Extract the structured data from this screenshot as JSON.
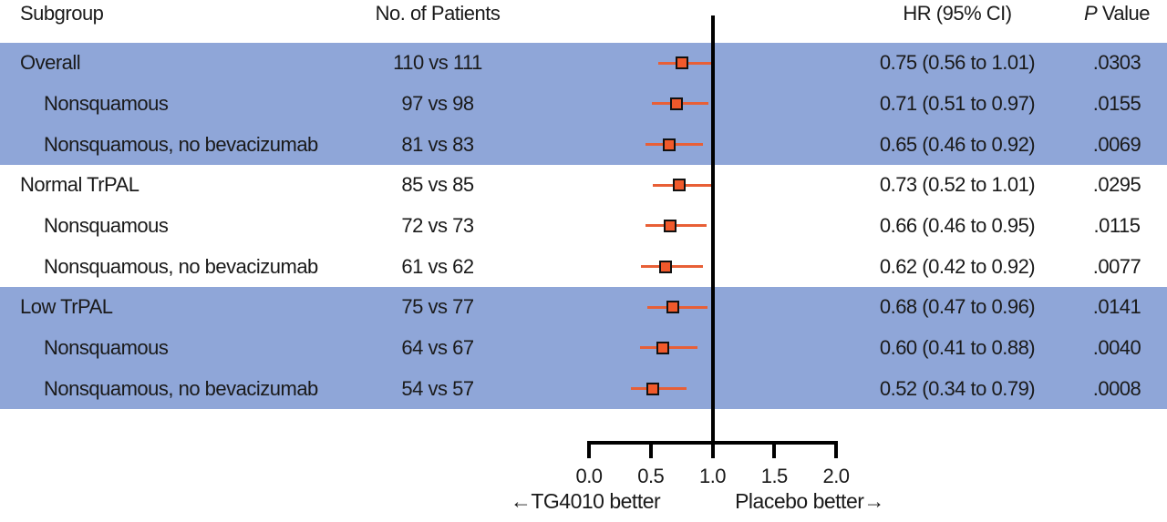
{
  "figure": {
    "header": {
      "subgroup": "Subgroup",
      "patients": "No. of Patients",
      "hr": "HR (95% CI)",
      "p_italic": "P",
      "p_rest": " Value"
    }
  },
  "colors": {
    "band_blue": "#8fa6d8",
    "marker_fill": "#f1592b",
    "marker_border": "#111111",
    "ci_line": "#e85f36",
    "axis_black": "#000000",
    "text": "#1a1a1a"
  },
  "chart_data": {
    "type": "forest",
    "title": "",
    "columns": [
      "Subgroup",
      "No. of Patients",
      "HR (95% CI)",
      "P Value"
    ],
    "x_axis": {
      "min": 0.0,
      "max": 2.0,
      "tick_values": [
        0.0,
        0.5,
        1.0,
        1.5,
        2.0
      ],
      "tick_labels": [
        "0.0",
        "0.5",
        "1.0",
        "1.5",
        "2.0"
      ],
      "reference_line": 1.0
    },
    "direction_labels": {
      "left": "←TG4010 better",
      "right": "Placebo better→"
    },
    "rows": [
      {
        "label": "Overall",
        "indent": false,
        "patients": "110 vs 111",
        "hr": 0.75,
        "ci_low": 0.56,
        "ci_high": 1.01,
        "hr_ci_text": "0.75 (0.56 to 1.01)",
        "p_value": ".0303",
        "band": "blue"
      },
      {
        "label": "Nonsquamous",
        "indent": true,
        "patients": "97 vs 98",
        "hr": 0.71,
        "ci_low": 0.51,
        "ci_high": 0.97,
        "hr_ci_text": "0.71 (0.51 to 0.97)",
        "p_value": ".0155",
        "band": "blue"
      },
      {
        "label": "Nonsquamous, no bevacizumab",
        "indent": true,
        "patients": "81 vs 83",
        "hr": 0.65,
        "ci_low": 0.46,
        "ci_high": 0.92,
        "hr_ci_text": "0.65 (0.46 to 0.92)",
        "p_value": ".0069",
        "band": "blue"
      },
      {
        "label": "Normal TrPAL",
        "indent": false,
        "patients": "85 vs 85",
        "hr": 0.73,
        "ci_low": 0.52,
        "ci_high": 1.01,
        "hr_ci_text": "0.73 (0.52 to 1.01)",
        "p_value": ".0295",
        "band": "white"
      },
      {
        "label": "Nonsquamous",
        "indent": true,
        "patients": "72 vs 73",
        "hr": 0.66,
        "ci_low": 0.46,
        "ci_high": 0.95,
        "hr_ci_text": "0.66 (0.46 to 0.95)",
        "p_value": ".0115",
        "band": "white"
      },
      {
        "label": "Nonsquamous, no bevacizumab",
        "indent": true,
        "patients": "61 vs 62",
        "hr": 0.62,
        "ci_low": 0.42,
        "ci_high": 0.92,
        "hr_ci_text": "0.62 (0.42 to 0.92)",
        "p_value": ".0077",
        "band": "white"
      },
      {
        "label": "Low TrPAL",
        "indent": false,
        "patients": "75 vs 77",
        "hr": 0.68,
        "ci_low": 0.47,
        "ci_high": 0.96,
        "hr_ci_text": "0.68 (0.47 to 0.96)",
        "p_value": ".0141",
        "band": "blue"
      },
      {
        "label": "Nonsquamous",
        "indent": true,
        "patients": "64 vs 67",
        "hr": 0.6,
        "ci_low": 0.41,
        "ci_high": 0.88,
        "hr_ci_text": "0.60 (0.41 to 0.88)",
        "p_value": ".0040",
        "band": "blue"
      },
      {
        "label": "Nonsquamous, no bevacizumab",
        "indent": true,
        "patients": "54 vs 57",
        "hr": 0.52,
        "ci_low": 0.34,
        "ci_high": 0.79,
        "hr_ci_text": "0.52 (0.34 to 0.79)",
        "p_value": ".0008",
        "band": "blue"
      }
    ]
  }
}
